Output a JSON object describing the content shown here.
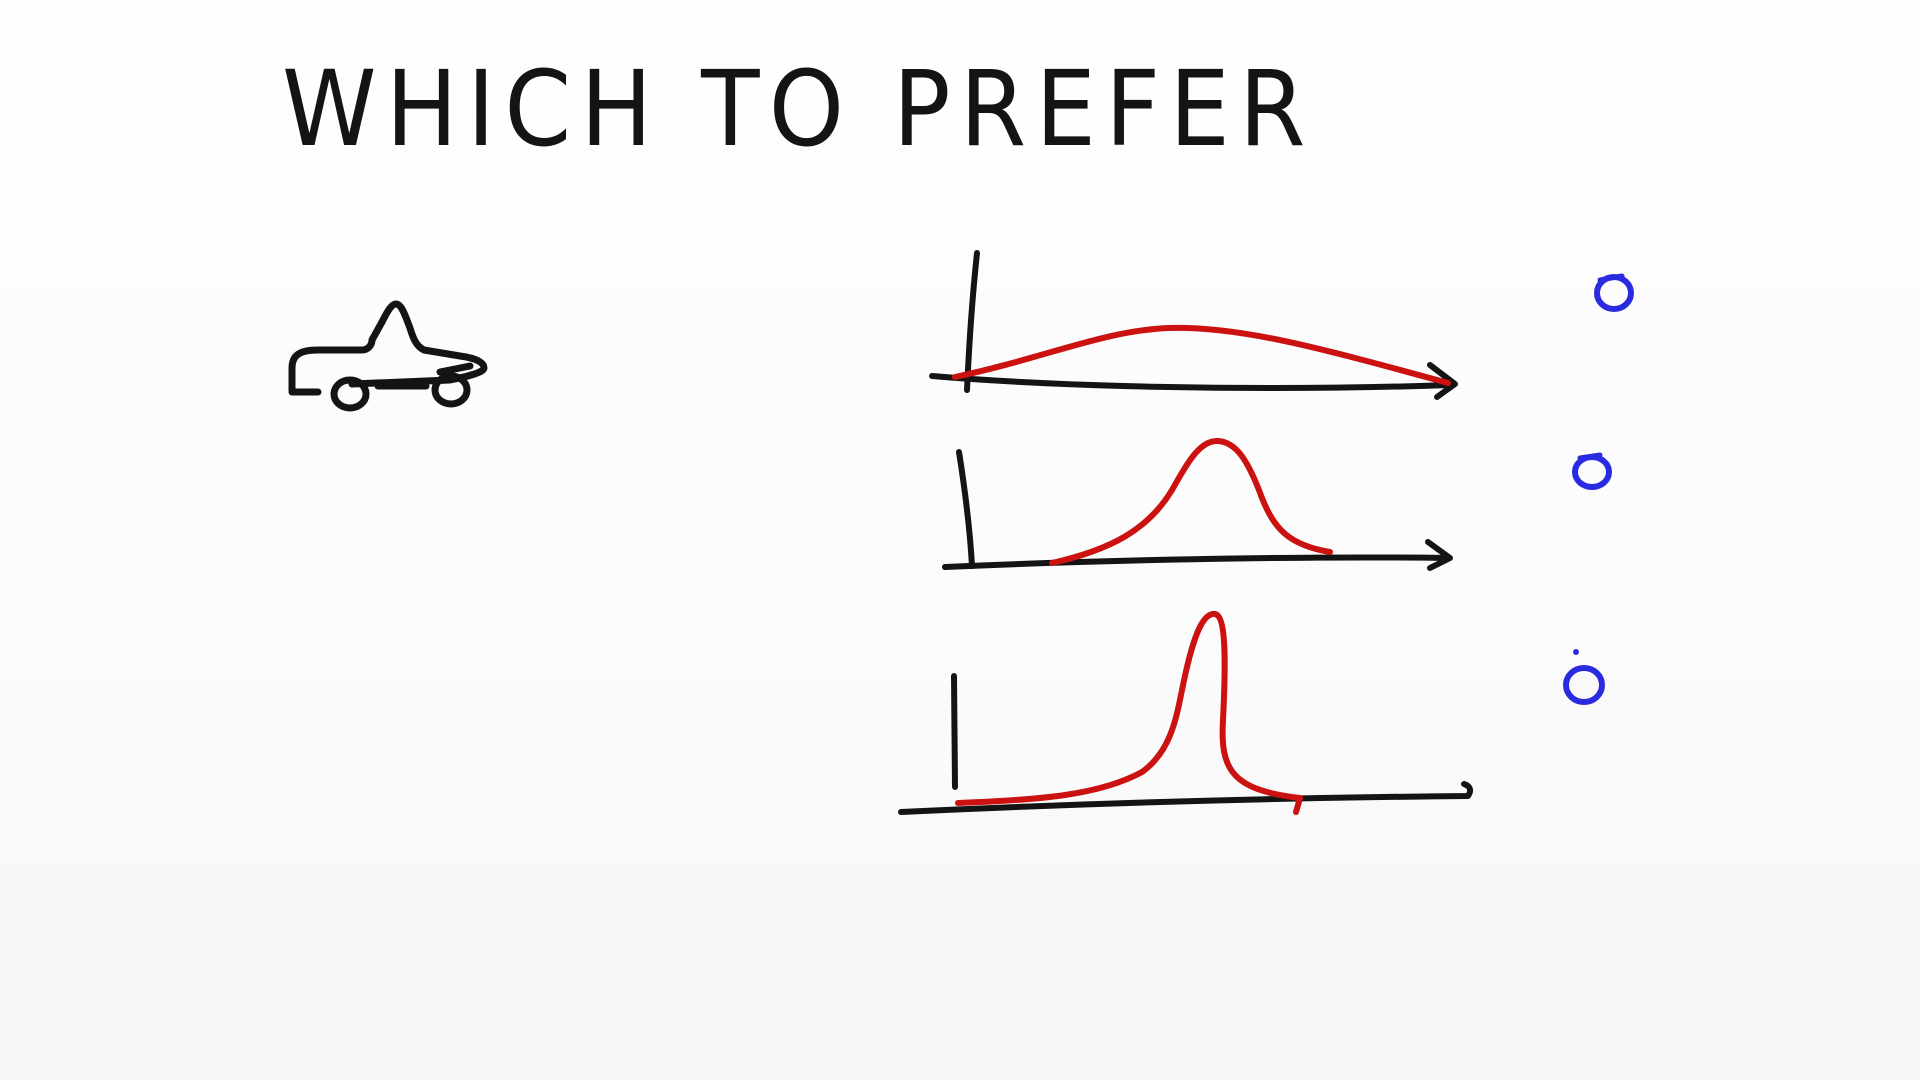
{
  "title": "WHICH TO PREFER",
  "colors": {
    "ink": "#141414",
    "curve": "#cc1111",
    "choice": "#2a2ae0"
  },
  "icons": {
    "vehicle": "car-icon"
  },
  "distributions": [
    {
      "shape": "flat wide bump",
      "spread": "wide",
      "peak": "low"
    },
    {
      "shape": "bell curve",
      "spread": "medium",
      "peak": "medium"
    },
    {
      "shape": "sharp spike",
      "spread": "narrow",
      "peak": "high"
    }
  ]
}
